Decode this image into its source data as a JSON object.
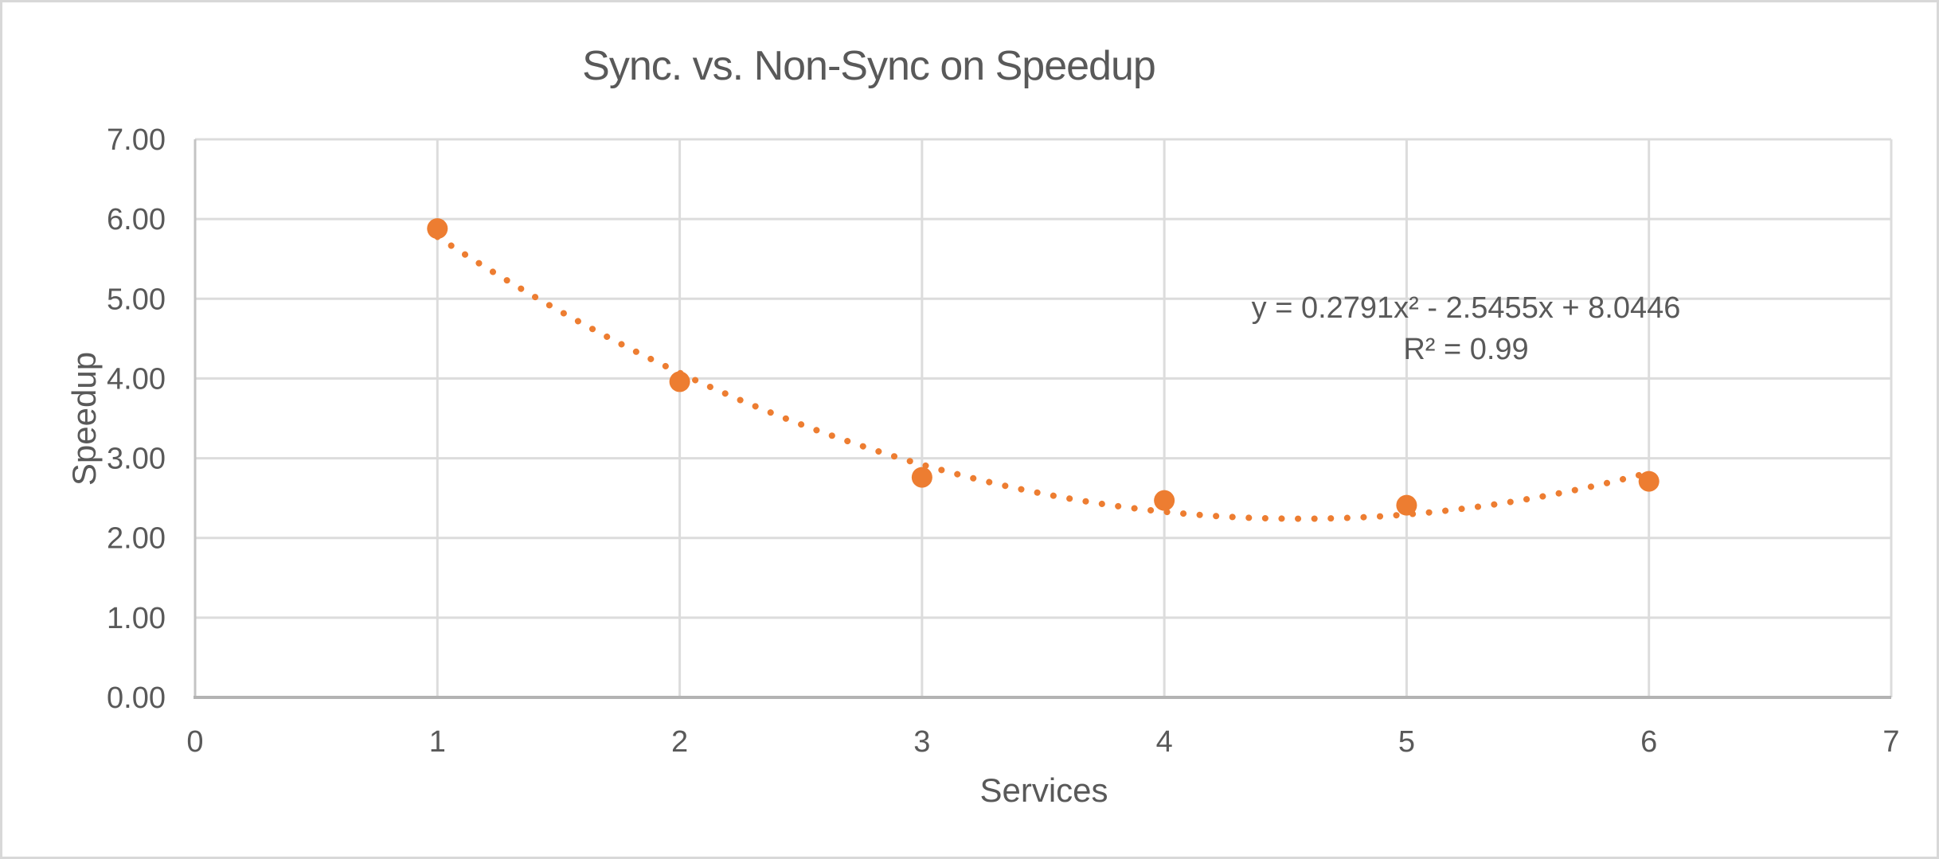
{
  "chart_data": {
    "type": "scatter",
    "title": "Sync. vs. Non-Sync on Speedup",
    "xlabel": "Services",
    "ylabel": "Speedup",
    "x": [
      1,
      2,
      3,
      4,
      5,
      6
    ],
    "y": [
      5.88,
      3.96,
      2.76,
      2.47,
      2.41,
      2.71
    ],
    "xlim": [
      0,
      7
    ],
    "ylim": [
      0,
      7
    ],
    "x_ticks": [
      "0",
      "1",
      "2",
      "3",
      "4",
      "5",
      "6",
      "7"
    ],
    "y_ticks": [
      "0.00",
      "1.00",
      "2.00",
      "3.00",
      "4.00",
      "5.00",
      "6.00",
      "7.00"
    ],
    "grid": true,
    "legend": false,
    "marker_color": "#ED7D31",
    "trendline": {
      "type": "polynomial",
      "order": 2,
      "coefficients": [
        0.2791,
        -2.5455,
        8.0446
      ],
      "x_range": [
        1,
        6
      ],
      "style": "dotted",
      "color": "#ED7D31",
      "equation_label": "y = 0.2791x² - 2.5455x + 8.0446",
      "r_squared_label": "R² = 0.99"
    },
    "colors": {
      "gridline": "#DCDCDC",
      "y_axis_line": "#C4C4C4",
      "x_axis_line": "#B3B3B3",
      "text": "#595959"
    }
  }
}
